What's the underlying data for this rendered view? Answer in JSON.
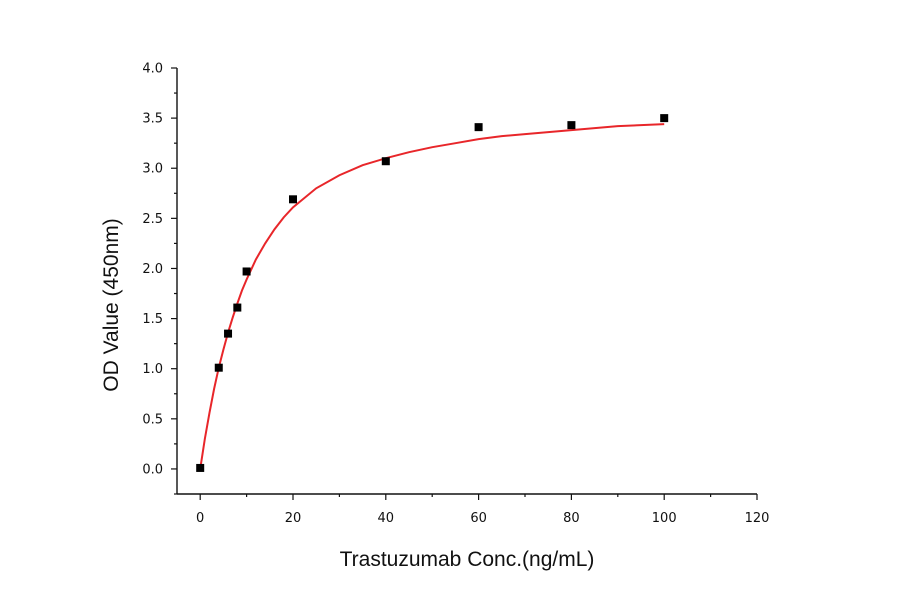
{
  "chart_data": {
    "type": "scatter",
    "xlabel": "Trastuzumab Conc.(ng/mL)",
    "ylabel": "OD Value (450nm)",
    "xlim": [
      -5,
      120
    ],
    "ylim": [
      -0.25,
      4.0
    ],
    "xticks": [
      "0",
      "20",
      "40",
      "60",
      "80",
      "100",
      "120"
    ],
    "yticks": [
      "0.0",
      "0.5",
      "1.0",
      "1.5",
      "2.0",
      "2.5",
      "3.0",
      "3.5",
      "4.0"
    ],
    "grid": false,
    "series": [
      {
        "marker": "square",
        "color": "#000000",
        "x": [
          0,
          4,
          6,
          8,
          10,
          20,
          40,
          60,
          80,
          100
        ],
        "y": [
          0.01,
          1.01,
          1.35,
          1.61,
          1.97,
          2.69,
          3.07,
          3.41,
          3.43,
          3.5
        ]
      },
      {
        "kind": "fit-curve",
        "color": "#e8262a",
        "x": [
          0,
          1,
          2,
          3,
          4,
          5,
          6,
          7,
          8,
          9,
          10,
          12,
          14,
          16,
          18,
          20,
          25,
          30,
          35,
          40,
          45,
          50,
          55,
          60,
          65,
          70,
          75,
          80,
          85,
          90,
          95,
          100
        ],
        "y": [
          0.0,
          0.3,
          0.56,
          0.8,
          1.01,
          1.19,
          1.36,
          1.51,
          1.65,
          1.78,
          1.89,
          2.09,
          2.25,
          2.39,
          2.51,
          2.61,
          2.8,
          2.93,
          3.03,
          3.1,
          3.16,
          3.21,
          3.25,
          3.29,
          3.32,
          3.34,
          3.36,
          3.38,
          3.4,
          3.42,
          3.43,
          3.44
        ]
      }
    ]
  }
}
